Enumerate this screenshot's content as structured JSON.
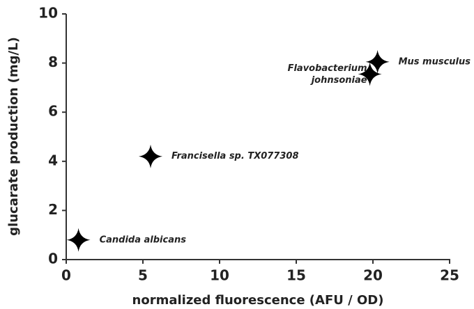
{
  "chart_data": {
    "type": "scatter",
    "xlabel": "normalized fluorescence (AFU / OD)",
    "ylabel": "glucarate production (mg/L)",
    "x": [
      0.8,
      5.5,
      19.8,
      20.3
    ],
    "values": [
      0.8,
      4.2,
      7.55,
      8.05
    ],
    "labels": [
      [
        "Candida albicans"
      ],
      [
        "Francisella sp. TX077308"
      ],
      [
        "Flavobacterium",
        "johnsoniae"
      ],
      [
        "Mus musculus"
      ]
    ],
    "color": "#000000",
    "xlim": [
      0,
      25
    ],
    "xticks": [
      0,
      5,
      10,
      15,
      20,
      25
    ],
    "ylim": [
      0,
      10
    ],
    "yticks": [
      0,
      2,
      4,
      6,
      8,
      10
    ],
    "grid": false
  }
}
